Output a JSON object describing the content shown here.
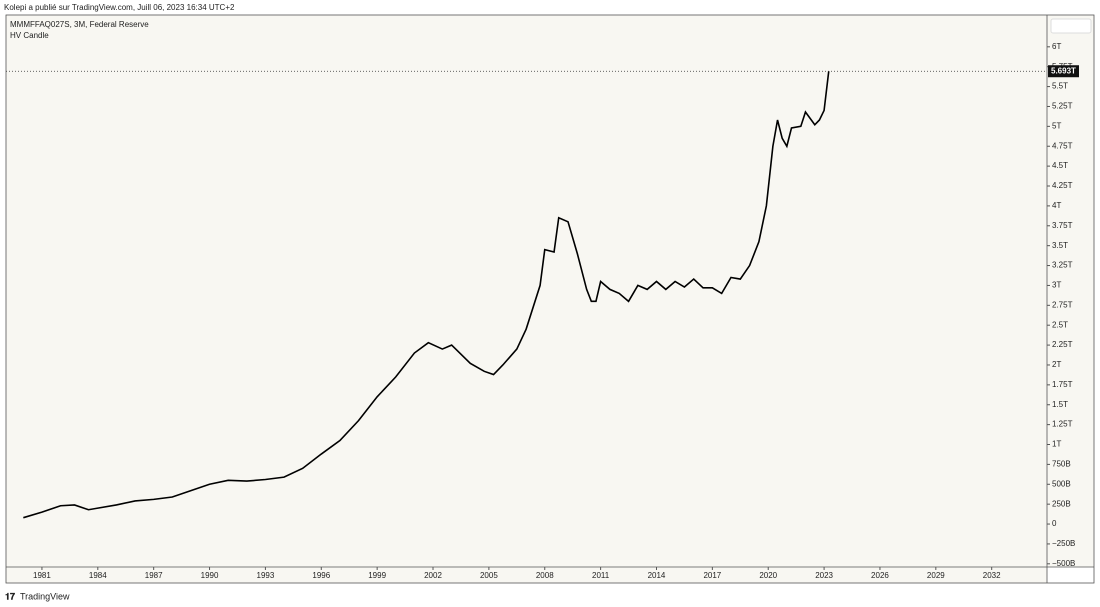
{
  "header": {
    "publisher": "Kolepi a publié sur TradingView.com, Juill 06, 2023 16:34 UTC+2",
    "footer": "TradingView"
  },
  "chart_data": {
    "type": "line",
    "title": "MMMFFAQ027S, 3M, Federal Reserve",
    "subtitle": "HV Candle",
    "color": "#000000",
    "x": [
      1980,
      1981,
      1982,
      1982.75,
      1983.5,
      1984,
      1985,
      1986,
      1987,
      1988,
      1989,
      1990,
      1991,
      1992,
      1993,
      1994,
      1995,
      1996,
      1997,
      1998,
      1999,
      2000,
      2001,
      2001.75,
      2002.5,
      2003,
      2004,
      2004.75,
      2005.25,
      2005.75,
      2006.5,
      2007,
      2007.75,
      2008,
      2008.5,
      2008.75,
      2009.25,
      2009.75,
      2010.25,
      2010.5,
      2010.75,
      2011,
      2011.5,
      2012,
      2012.5,
      2013,
      2013.5,
      2014,
      2014.5,
      2015,
      2015.5,
      2016,
      2016.5,
      2017,
      2017.5,
      2018,
      2018.5,
      2019,
      2019.5,
      2019.9,
      2020.25,
      2020.5,
      2020.75,
      2021,
      2021.25,
      2021.75,
      2022,
      2022.5,
      2022.75,
      2023,
      2023.25
    ],
    "values": [
      0.08,
      0.15,
      0.23,
      0.24,
      0.18,
      0.2,
      0.24,
      0.29,
      0.31,
      0.34,
      0.42,
      0.5,
      0.55,
      0.54,
      0.56,
      0.59,
      0.7,
      0.88,
      1.05,
      1.3,
      1.6,
      1.85,
      2.15,
      2.28,
      2.2,
      2.25,
      2.02,
      1.92,
      1.88,
      2.0,
      2.2,
      2.45,
      3.0,
      3.45,
      3.42,
      3.85,
      3.8,
      3.4,
      2.95,
      2.8,
      2.8,
      3.05,
      2.95,
      2.9,
      2.8,
      3.0,
      2.95,
      3.05,
      2.95,
      3.05,
      2.98,
      3.08,
      2.97,
      2.97,
      2.9,
      3.1,
      3.08,
      3.25,
      3.55,
      4.0,
      4.75,
      5.08,
      4.85,
      4.75,
      4.98,
      5.0,
      5.18,
      5.02,
      5.08,
      5.2,
      5.693
    ],
    "last_label": {
      "value": 5.693,
      "label": "5.693T"
    },
    "xlim": [
      1979.07,
      2034.97
    ],
    "xticks": [
      1981,
      1984,
      1987,
      1990,
      1993,
      1996,
      1999,
      2002,
      2005,
      2008,
      2011,
      2014,
      2017,
      2020,
      2023,
      2026,
      2029,
      2032
    ],
    "ylim": [
      -0.54,
      6.4
    ],
    "yticks": [
      {
        "value": -0.5,
        "label": "−500B"
      },
      {
        "value": -0.25,
        "label": "−250B"
      },
      0,
      {
        "value": 0.25,
        "label": "250B"
      },
      {
        "value": 0.5,
        "label": "500B"
      },
      {
        "value": 0.75,
        "label": "750B"
      },
      {
        "value": 1,
        "label": "1T"
      },
      {
        "value": 1.25,
        "label": "1.25T"
      },
      {
        "value": 1.5,
        "label": "1.5T"
      },
      {
        "value": 1.75,
        "label": "1.75T"
      },
      {
        "value": 2,
        "label": "2T"
      },
      {
        "value": 2.25,
        "label": "2.25T"
      },
      {
        "value": 2.5,
        "label": "2.5T"
      },
      {
        "value": 2.75,
        "label": "2.75T"
      },
      {
        "value": 3,
        "label": "3T"
      },
      {
        "value": 3.25,
        "label": "3.25T"
      },
      {
        "value": 3.5,
        "label": "3.5T"
      },
      {
        "value": 3.75,
        "label": "3.75T"
      },
      {
        "value": 4,
        "label": "4T"
      },
      {
        "value": 4.25,
        "label": "4.25T"
      },
      {
        "value": 4.5,
        "label": "4.5T"
      },
      {
        "value": 4.75,
        "label": "4.75T"
      },
      {
        "value": 5,
        "label": "5T"
      },
      {
        "value": 5.25,
        "label": "5.25T"
      },
      {
        "value": 5.5,
        "label": "5.5T"
      },
      {
        "value": 5.75,
        "label": "5.75T"
      },
      {
        "value": 6,
        "label": "6T"
      }
    ]
  }
}
